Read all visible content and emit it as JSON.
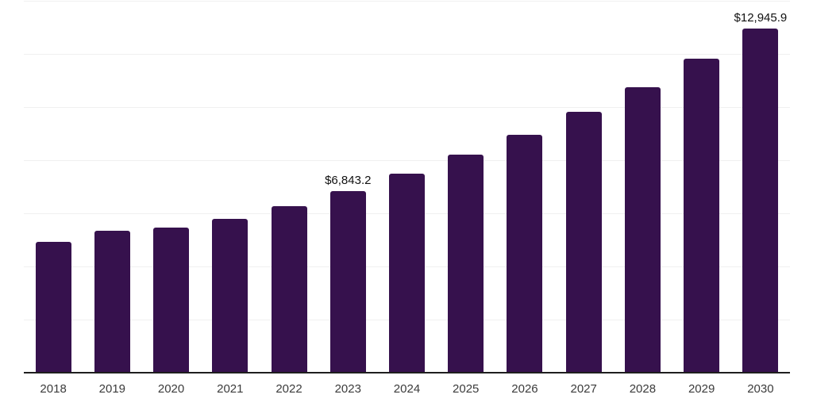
{
  "chart_data": {
    "type": "bar",
    "title": "",
    "xlabel": "",
    "ylabel": "",
    "categories": [
      "2018",
      "2019",
      "2020",
      "2021",
      "2022",
      "2023",
      "2024",
      "2025",
      "2026",
      "2027",
      "2028",
      "2029",
      "2030"
    ],
    "values": [
      4940,
      5330,
      5450,
      5780,
      6280,
      6843.2,
      7480,
      8200,
      8970,
      9810,
      10760,
      11810,
      12945.9
    ],
    "data_labels": [
      "",
      "",
      "",
      "",
      "",
      "$6,843.2",
      "",
      "",
      "",
      "",
      "",
      "",
      "$12,945.9"
    ],
    "ylim": [
      0,
      14000
    ],
    "gridline_step": 2000,
    "grid": true,
    "legend": false,
    "bar_color": "#36114D",
    "axis_line_color": "#1f1f1f",
    "gridline_color": "#f0f0f0",
    "tick_label_color": "#3b3b3b",
    "data_label_color": "#111111",
    "background_color": "#ffffff"
  }
}
